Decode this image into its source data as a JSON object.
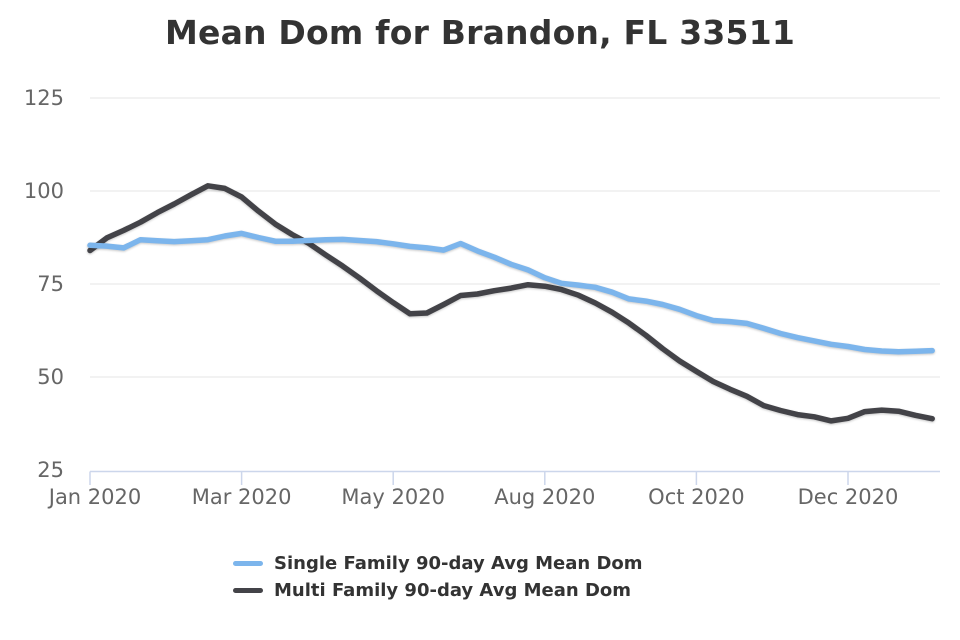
{
  "chart_data": {
    "type": "line",
    "title": "Mean Dom for Brandon, FL 33511",
    "xlabel": "",
    "ylabel": "",
    "ylim": [
      25,
      125
    ],
    "y_ticks": [
      125,
      100,
      75,
      50,
      25
    ],
    "grid": true,
    "legend_position": "bottom",
    "x_tick_labels": [
      "Jan 2020",
      "Mar 2020",
      "May 2020",
      "Aug 2020",
      "Oct 2020",
      "Dec 2020"
    ],
    "x_tick_indices": [
      0,
      9,
      18,
      27,
      36,
      45
    ],
    "series": [
      {
        "name": "Multi Family 90-day Avg Mean Dom",
        "color": "#434348",
        "values": [
          84.0,
          87.4,
          89.4,
          91.6,
          94.2,
          96.5,
          99.0,
          101.4,
          100.7,
          98.4,
          94.6,
          91.1,
          88.3,
          85.9,
          82.8,
          79.8,
          76.6,
          73.2,
          70.0,
          67.0,
          67.2,
          69.5,
          71.9,
          72.3,
          73.2,
          73.9,
          74.8,
          74.4,
          73.5,
          72.0,
          69.9,
          67.4,
          64.5,
          61.2,
          57.6,
          54.3,
          51.5,
          48.8,
          46.7,
          44.8,
          42.3,
          41.0,
          39.9,
          39.3,
          38.2,
          38.9,
          40.7,
          41.1,
          40.8,
          39.7,
          38.8
        ]
      },
      {
        "name": "Single Family 90-day Avg Mean Dom",
        "color": "#7cb5ec",
        "values": [
          85.4,
          85.2,
          84.7,
          86.9,
          86.6,
          86.4,
          86.6,
          86.9,
          87.9,
          88.6,
          87.5,
          86.5,
          86.5,
          86.7,
          86.9,
          87.0,
          86.7,
          86.4,
          85.8,
          85.1,
          84.7,
          84.1,
          85.9,
          83.9,
          82.2,
          80.3,
          78.8,
          76.7,
          75.2,
          74.7,
          74.1,
          72.8,
          71.0,
          70.4,
          69.5,
          68.2,
          66.5,
          65.2,
          64.9,
          64.4,
          63.1,
          61.7,
          60.6,
          59.7,
          58.8,
          58.2,
          57.4,
          57.0,
          56.8,
          56.9,
          57.1
        ]
      }
    ],
    "legend_order": [
      "Single Family 90-day Avg Mean Dom",
      "Multi Family 90-day Avg Mean Dom"
    ]
  },
  "colors": {
    "title": "#333333",
    "tick_label": "#666666",
    "gridline": "#e6e6e6",
    "axis_line": "#ccd6eb",
    "background": "#ffffff",
    "single_family": "#7cb5ec",
    "multi_family": "#434348"
  }
}
